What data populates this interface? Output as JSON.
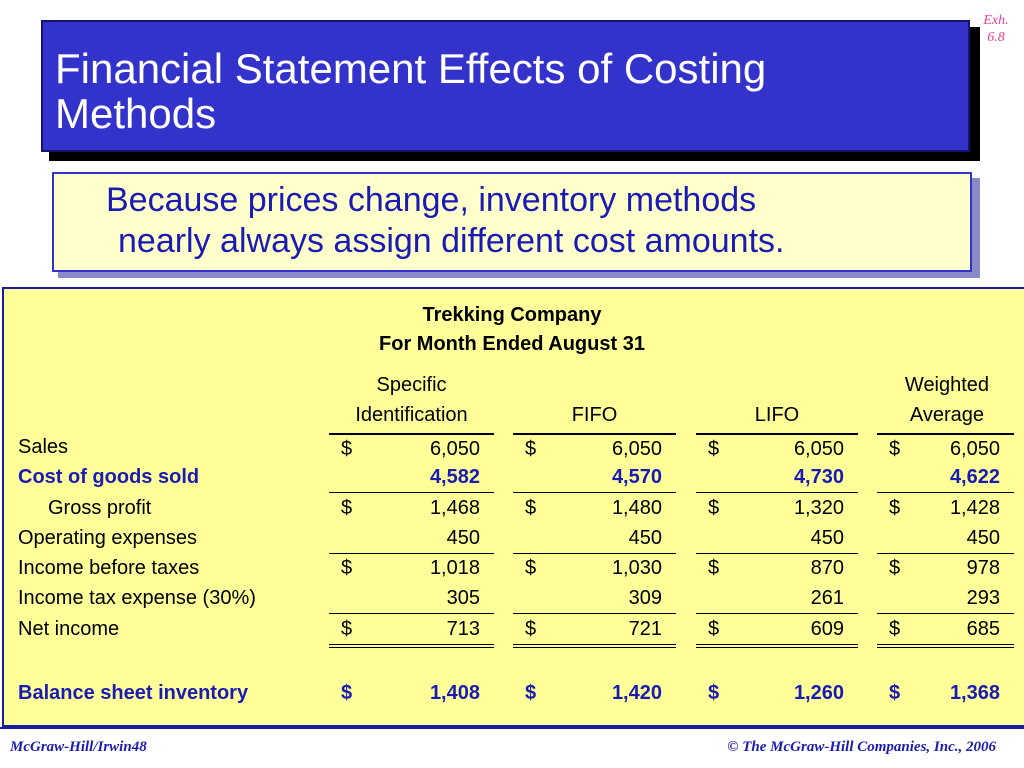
{
  "exhibit": {
    "line1": "Exh.",
    "line2": "6.8"
  },
  "title": {
    "line1": "Financial Statement Effects of Costing",
    "line2": "Methods"
  },
  "subtitle": {
    "line1": "Because prices change, inventory methods",
    "line2": "nearly always assign different cost amounts."
  },
  "table": {
    "company": "Trekking Company",
    "period": "For Month Ended August 31",
    "columns": [
      {
        "line1": "Specific",
        "line2": "Identification"
      },
      {
        "line1": "",
        "line2": "FIFO"
      },
      {
        "line1": "",
        "line2": "LIFO"
      },
      {
        "line1": "Weighted",
        "line2": "Average"
      }
    ],
    "rows": [
      {
        "label": "Sales",
        "cells": [
          {
            "d": "$",
            "v": "6,050"
          },
          {
            "d": "$",
            "v": "6,050"
          },
          {
            "d": "$",
            "v": "6,050"
          },
          {
            "d": "$",
            "v": "6,050"
          }
        ]
      },
      {
        "label": "Cost of goods sold",
        "cells": [
          {
            "d": "",
            "v": "4,582"
          },
          {
            "d": "",
            "v": "4,570"
          },
          {
            "d": "",
            "v": "4,730"
          },
          {
            "d": "",
            "v": "4,622"
          }
        ]
      },
      {
        "label": "Gross profit",
        "cells": [
          {
            "d": "$",
            "v": "1,468"
          },
          {
            "d": "$",
            "v": "1,480"
          },
          {
            "d": "$",
            "v": "1,320"
          },
          {
            "d": "$",
            "v": "1,428"
          }
        ]
      },
      {
        "label": "Operating expenses",
        "cells": [
          {
            "d": "",
            "v": "450"
          },
          {
            "d": "",
            "v": "450"
          },
          {
            "d": "",
            "v": "450"
          },
          {
            "d": "",
            "v": "450"
          }
        ]
      },
      {
        "label": "Income before taxes",
        "cells": [
          {
            "d": "$",
            "v": "1,018"
          },
          {
            "d": "$",
            "v": "1,030"
          },
          {
            "d": "$",
            "v": "870"
          },
          {
            "d": "$",
            "v": "978"
          }
        ]
      },
      {
        "label": "Income tax expense (30%)",
        "cells": [
          {
            "d": "",
            "v": "305"
          },
          {
            "d": "",
            "v": "309"
          },
          {
            "d": "",
            "v": "261"
          },
          {
            "d": "",
            "v": "293"
          }
        ]
      },
      {
        "label": "Net income",
        "cells": [
          {
            "d": "$",
            "v": "713"
          },
          {
            "d": "$",
            "v": "721"
          },
          {
            "d": "$",
            "v": "609"
          },
          {
            "d": "$",
            "v": "685"
          }
        ]
      },
      {
        "label": "Balance sheet inventory",
        "cells": [
          {
            "d": "$",
            "v": "1,408"
          },
          {
            "d": "$",
            "v": "1,420"
          },
          {
            "d": "$",
            "v": "1,260"
          },
          {
            "d": "$",
            "v": "1,368"
          }
        ]
      }
    ]
  },
  "footer": {
    "left": "McGraw-Hill/Irwin48",
    "right": "© The McGraw-Hill Companies, Inc., 2006"
  },
  "colors": {
    "title_bg": "#3333cc",
    "panel_bg": "#ffff99",
    "accent_text": "#1a1ab4",
    "exhibit": "#e8409c"
  }
}
